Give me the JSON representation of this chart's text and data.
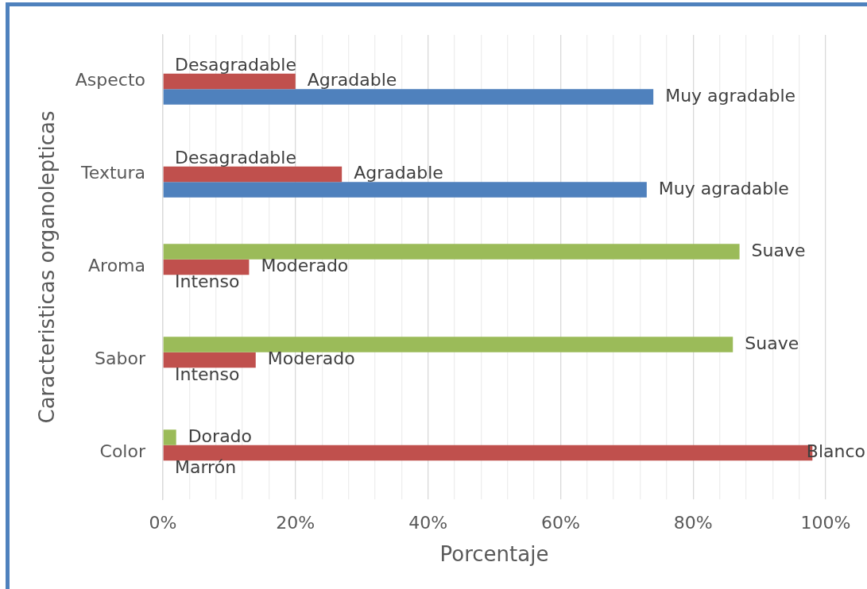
{
  "chart_data": {
    "type": "bar",
    "orientation": "horizontal",
    "xlabel": "Porcentaje",
    "ylabel": "Caracteristicas organolepticas",
    "categories": [
      "Aspecto",
      "Textura",
      "Aroma",
      "Sabor",
      "Color"
    ],
    "series": [
      {
        "color": "#9bbb59",
        "values": [
          0,
          0,
          87,
          86,
          2
        ],
        "value_labels": [
          "Desagradable",
          "Desagradable",
          "Suave",
          "Suave",
          "Dorado"
        ]
      },
      {
        "color": "#c0504d",
        "values": [
          20,
          27,
          13,
          14,
          98
        ],
        "value_labels": [
          "Agradable",
          "Agradable",
          "Moderado",
          "Moderado",
          "Blanco"
        ]
      },
      {
        "color": "#4f81bd",
        "values": [
          74,
          73,
          0,
          0,
          0
        ],
        "value_labels": [
          "Muy agradable",
          "Muy agradable",
          "Intenso",
          "Intenso",
          "Marrón"
        ]
      }
    ],
    "xlim": [
      0,
      100
    ],
    "xticks": [
      {
        "value": 0,
        "label": "0%"
      },
      {
        "value": 4,
        "label": null
      },
      {
        "value": 8,
        "label": null
      },
      {
        "value": 12,
        "label": null
      },
      {
        "value": 16,
        "label": null
      },
      {
        "value": 20,
        "label": "20%"
      },
      {
        "value": 24,
        "label": null
      },
      {
        "value": 28,
        "label": null
      },
      {
        "value": 32,
        "label": null
      },
      {
        "value": 36,
        "label": null
      },
      {
        "value": 40,
        "label": "40%"
      },
      {
        "value": 44,
        "label": null
      },
      {
        "value": 48,
        "label": null
      },
      {
        "value": 52,
        "label": null
      },
      {
        "value": 56,
        "label": null
      },
      {
        "value": 60,
        "label": "60%"
      },
      {
        "value": 64,
        "label": null
      },
      {
        "value": 68,
        "label": null
      },
      {
        "value": 72,
        "label": null
      },
      {
        "value": 76,
        "label": null
      },
      {
        "value": 80,
        "label": "80%"
      },
      {
        "value": 84,
        "label": null
      },
      {
        "value": 88,
        "label": null
      },
      {
        "value": 92,
        "label": null
      },
      {
        "value": 96,
        "label": null
      },
      {
        "value": 100,
        "label": "100%"
      }
    ],
    "grid": "x"
  }
}
